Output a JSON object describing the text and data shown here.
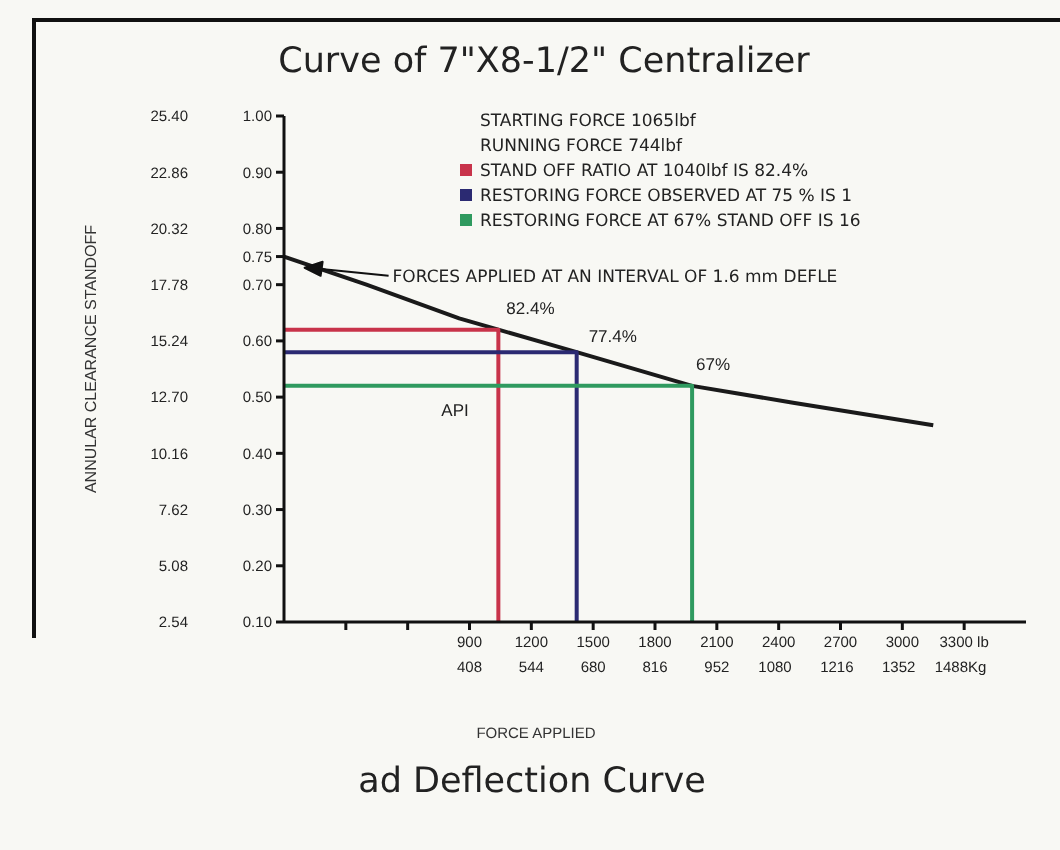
{
  "chart_data": {
    "type": "line",
    "title": "Curve of 7\"X8-1/2\" Centralizer",
    "xlabel": "FORCE APPLIED",
    "y2label": "ANNULAR CLEARANCE STANDOFF",
    "xlim": [
      0,
      3600
    ],
    "xticks": [
      {
        "value": 300,
        "label": null
      },
      {
        "value": 600,
        "label": null
      },
      900,
      1200,
      1500,
      1800,
      2100,
      2400,
      2700,
      3000,
      {
        "value": 3300,
        "label": "3300 lb"
      }
    ],
    "x2lim": [
      0,
      1632
    ],
    "x2ticks": [
      408,
      544,
      680,
      816,
      952,
      1080,
      1216,
      1352,
      {
        "value": 1488,
        "label": "1488Kg"
      }
    ],
    "ylim": [
      0.1,
      1.0
    ],
    "yticks": [
      {
        "value": 0.1,
        "label": "0.10"
      },
      {
        "value": 0.2,
        "label": "0.20"
      },
      {
        "value": 0.3,
        "label": "0.30"
      },
      {
        "value": 0.4,
        "label": "0.40"
      },
      {
        "value": 0.5,
        "label": "0.50"
      },
      {
        "value": 0.6,
        "label": "0.60"
      },
      {
        "value": 0.7,
        "label": "0.70"
      },
      {
        "value": 0.75,
        "label": "0.75"
      },
      {
        "value": 0.8,
        "label": "0.80"
      },
      {
        "value": 0.9,
        "label": "0.90"
      },
      {
        "value": 1.0,
        "label": "1.00"
      }
    ],
    "y2lim": [
      2.54,
      25.4
    ],
    "y2ticks": [
      2.54,
      5.08,
      7.62,
      10.16,
      {
        "value": 12.7,
        "label": "12.70"
      },
      15.24,
      17.78,
      20.32,
      22.86,
      {
        "value": 25.4,
        "label": "25.40"
      }
    ],
    "series": [
      {
        "color": "#1a1a1a",
        "x": [
          0,
          400,
          850,
          1040,
          1420,
          1980,
          2470,
          3150
        ],
        "values": [
          0.75,
          0.7,
          0.64,
          0.62,
          0.58,
          0.52,
          0.49,
          0.45
        ]
      },
      {
        "name": "STAND OFF RATIO AT 1040lbf IS 82.4%",
        "color": "#c8334a",
        "x": [
          0,
          1040,
          1040
        ],
        "values": [
          0.62,
          0.62,
          0.1
        ]
      },
      {
        "name": "RESTORING FORCE OBSERVED AT 75 % IS 1",
        "color": "#2b2a72",
        "x": [
          0,
          1420,
          1420
        ],
        "values": [
          0.58,
          0.58,
          0.1
        ]
      },
      {
        "name": "RESTORING FORCE AT 67% STAND OFF IS 16",
        "color": "#2f9a5f",
        "x": [
          0,
          1980,
          1980
        ],
        "values": [
          0.52,
          0.52,
          0.1
        ]
      }
    ],
    "annotations": [
      "STARTING FORCE 1065lbf",
      "RUNNING FORCE 744lbf",
      {
        "text": "82.4%",
        "x": 1040,
        "y": 0.62
      },
      {
        "text": "77.4%",
        "x": 1420,
        "y": 0.58
      },
      {
        "text": "67%",
        "x": 1980,
        "y": 0.52
      },
      {
        "text": "API",
        "x": 830,
        "y": 0.52
      },
      {
        "text": "FORCES APPLIED AT AN INTERVAL OF 1.6 mm DEFLE",
        "x": 100,
        "y": 0.73
      },
      "ad Deflection Curve"
    ],
    "legend": "top right",
    "marker": "none",
    "line_style": "solid"
  }
}
